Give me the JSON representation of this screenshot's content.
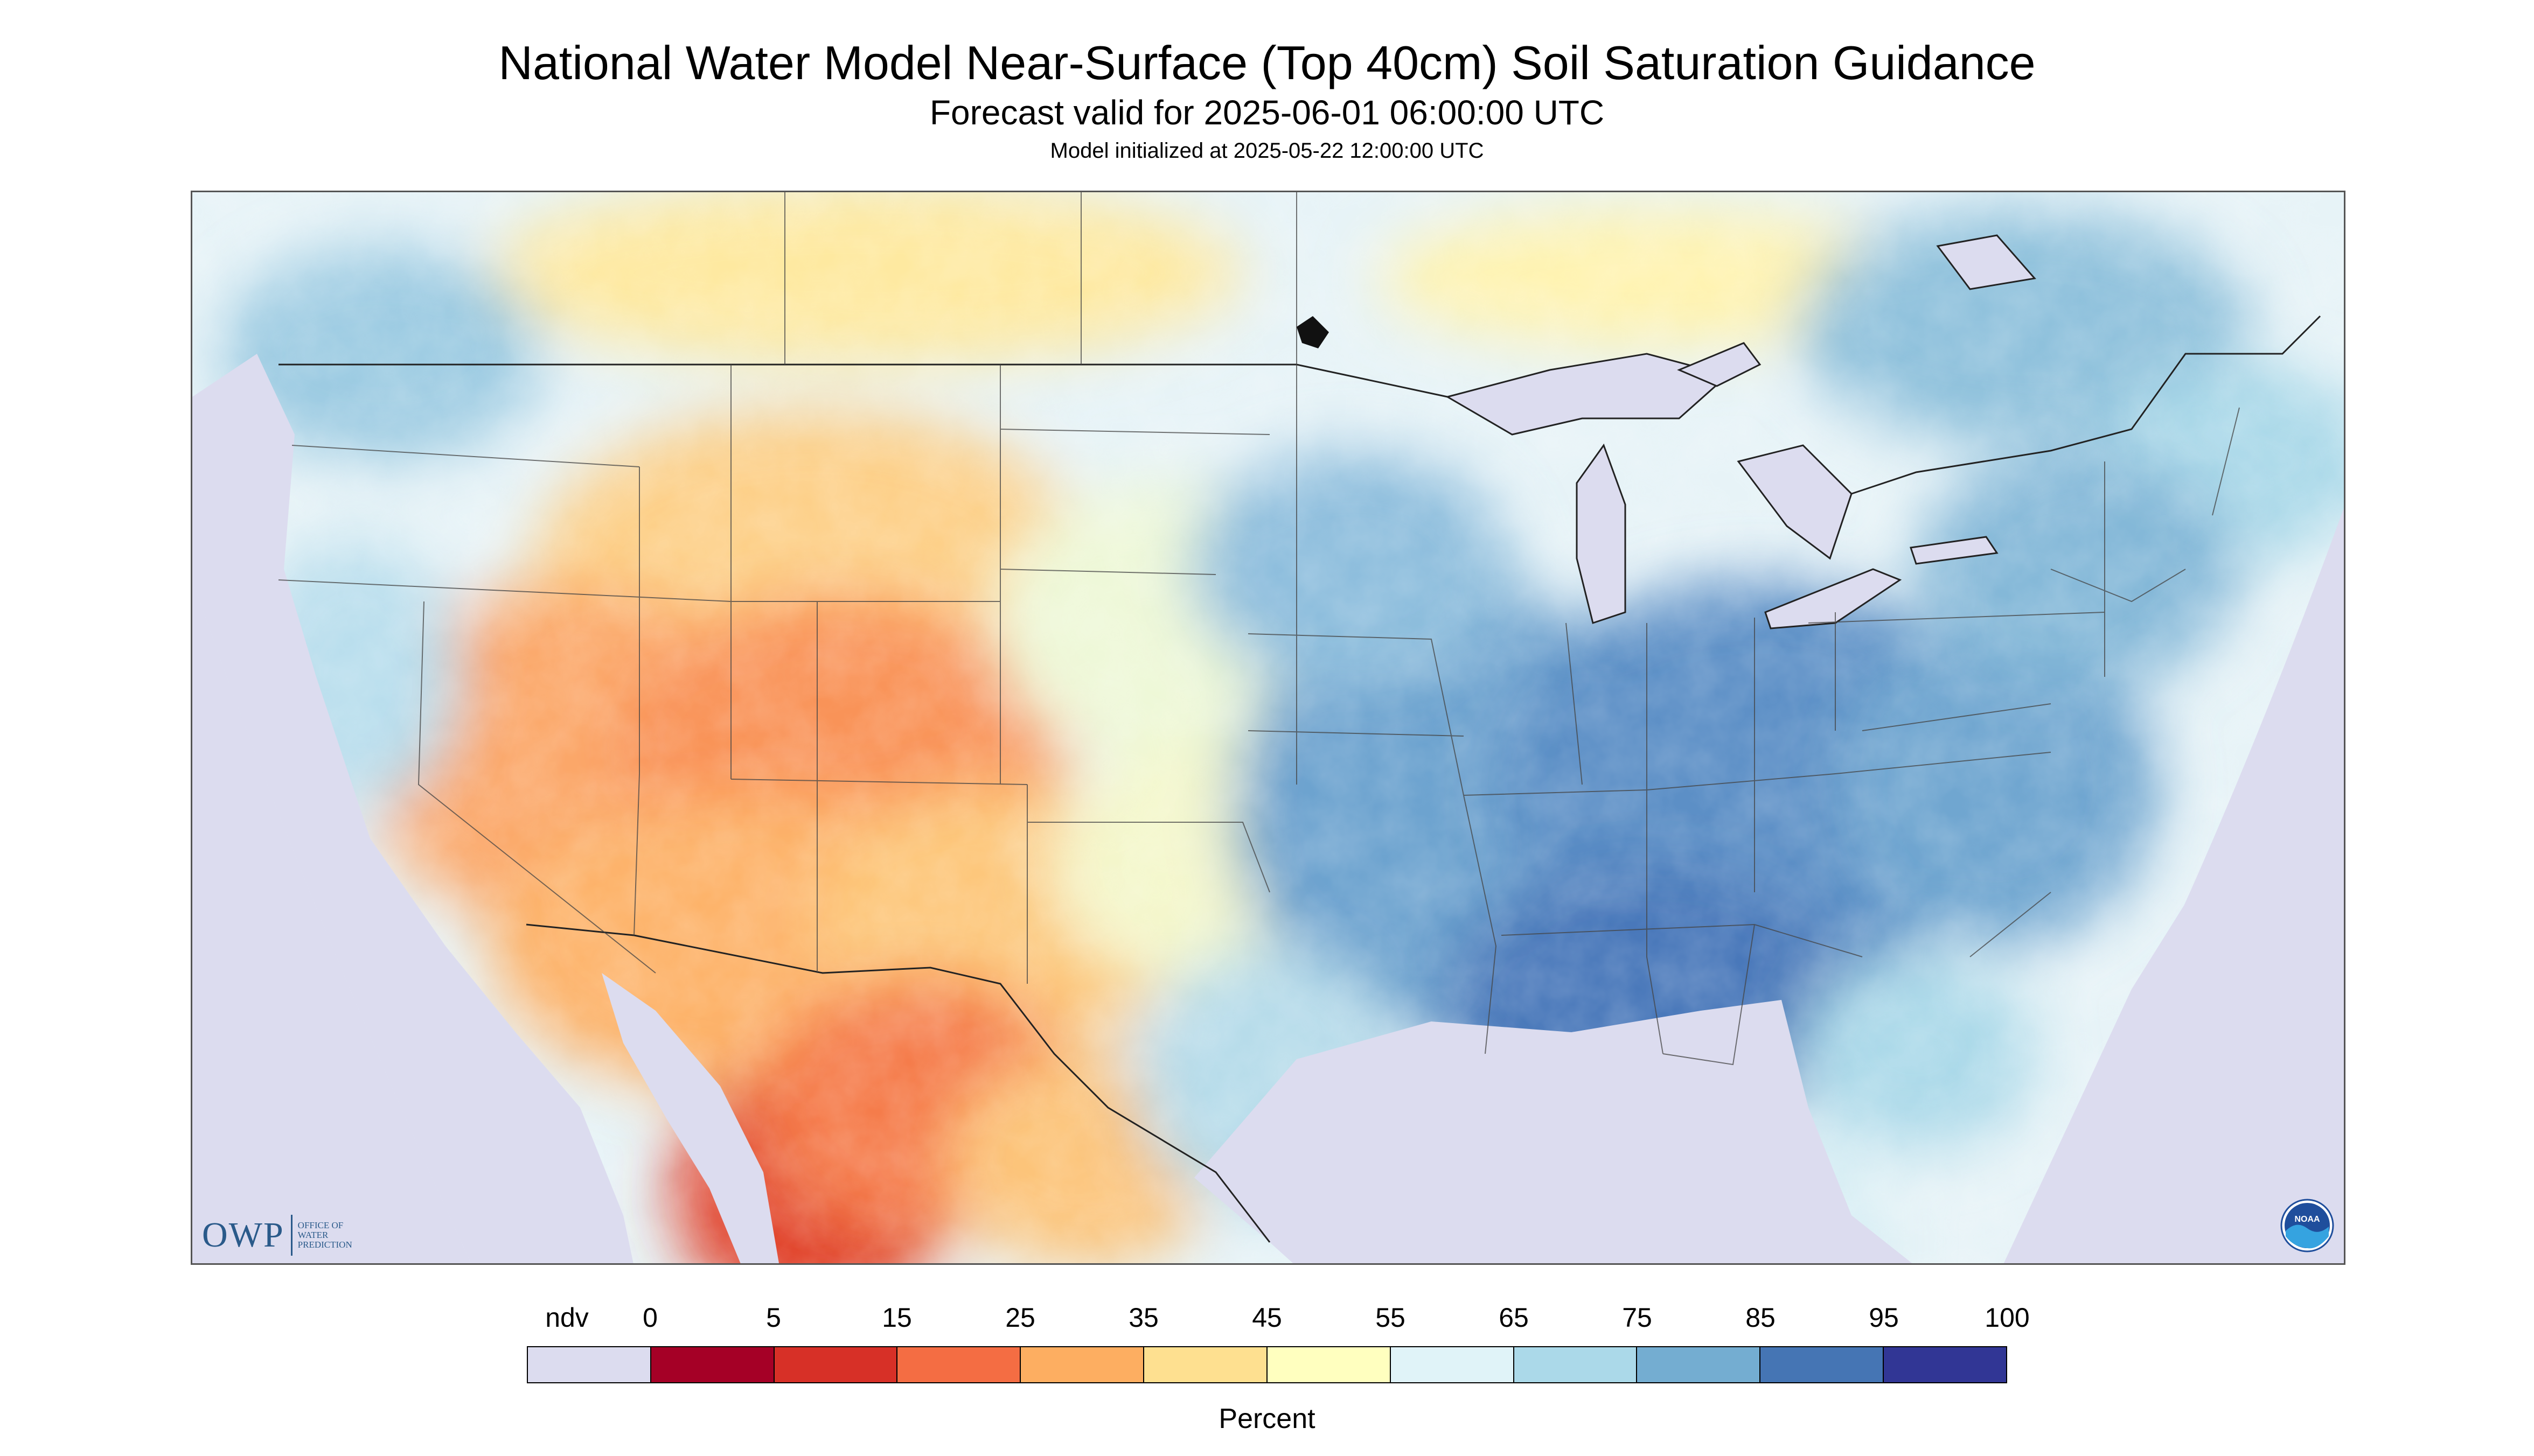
{
  "header": {
    "title": "National Water Model Near-Surface (Top 40cm) Soil Saturation Guidance",
    "subtitle": "Forecast valid for 2025-06-01 06:00:00 UTC",
    "init_note": "Model initialized at 2025-05-22 12:00:00 UTC"
  },
  "map": {
    "region": "Continental United States",
    "nodata_color": "#dcdcef",
    "layers": [
      "soil-saturation-raster",
      "state-borders",
      "country-borders",
      "great-lakes"
    ],
    "logo_owp": {
      "mark": "OWP",
      "lines": [
        "OFFICE OF",
        "WATER",
        "PREDICTION"
      ]
    },
    "logo_noaa": {
      "text": "NOAA"
    }
  },
  "legend": {
    "label_ndv": "ndv",
    "units": "Percent",
    "ticks": [
      "0",
      "5",
      "15",
      "25",
      "35",
      "45",
      "55",
      "65",
      "75",
      "85",
      "95",
      "100"
    ],
    "colors": [
      "#dcdcef",
      "#a50026",
      "#d73027",
      "#f46d43",
      "#fdae61",
      "#fee090",
      "#ffffbf",
      "#e0f3f8",
      "#abd9e9",
      "#74add1",
      "#4575b4",
      "#313695"
    ]
  }
}
